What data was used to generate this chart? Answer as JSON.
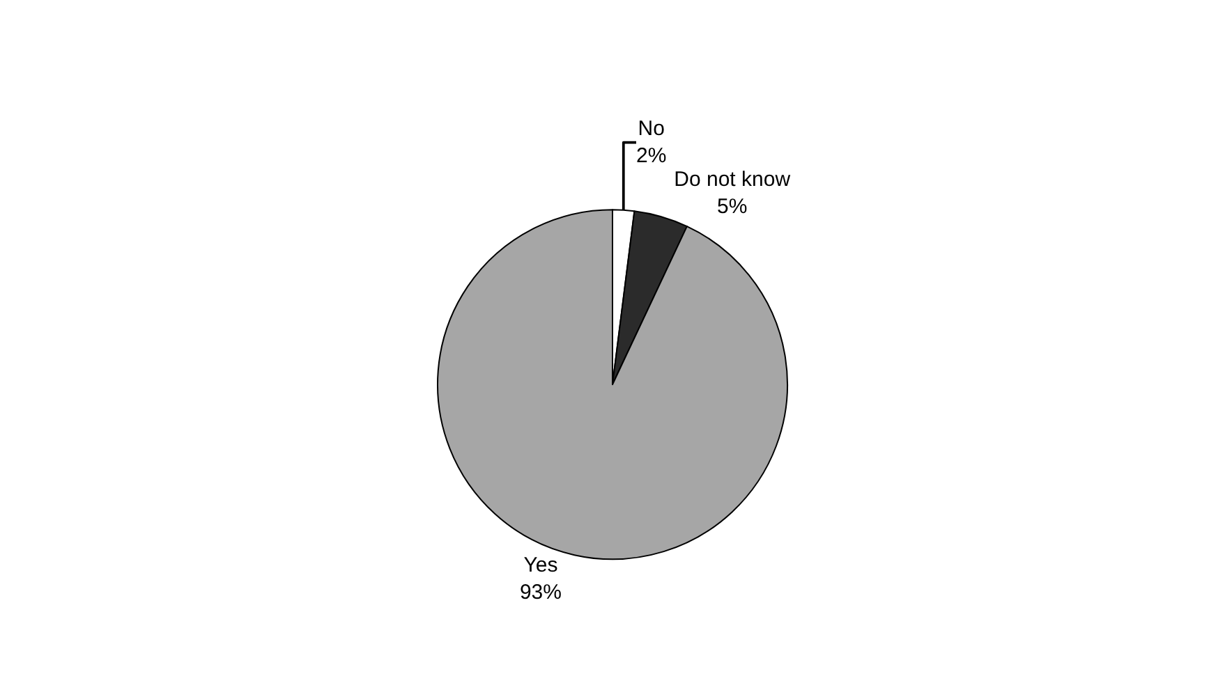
{
  "chart_data": {
    "type": "pie",
    "categories": [
      "No",
      "Do not know",
      "Yes"
    ],
    "values": [
      2,
      5,
      93
    ],
    "value_labels": [
      "2%",
      "5%",
      "93%"
    ],
    "colors": [
      "#ffffff",
      "#2b2b2b",
      "#a6a6a6"
    ],
    "legend": false
  }
}
